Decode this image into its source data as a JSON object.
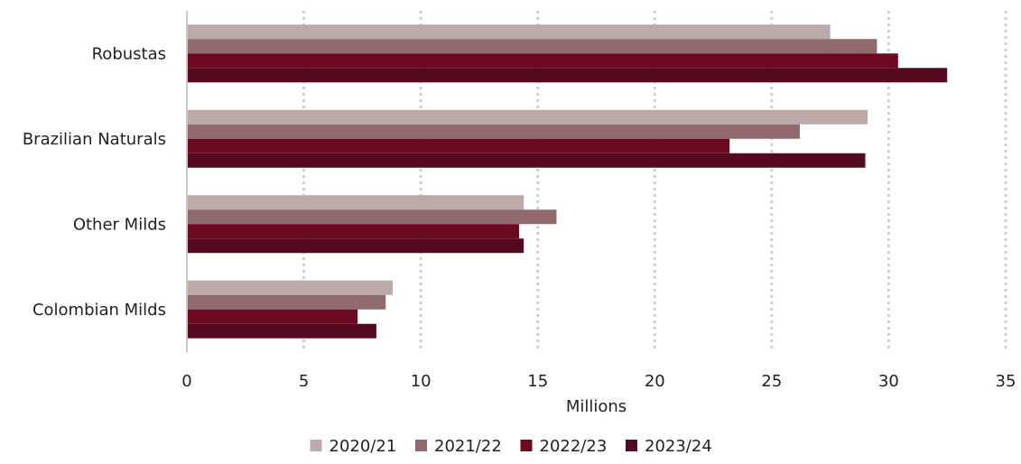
{
  "chart_data": {
    "type": "bar",
    "orientation": "horizontal",
    "categories": [
      "Robustas",
      "Brazilian Naturals",
      "Other Milds",
      "Colombian Milds"
    ],
    "series": [
      {
        "name": "2020/21",
        "color": "#bcaaaa",
        "values": [
          27.5,
          29.1,
          14.4,
          8.8
        ]
      },
      {
        "name": "2021/22",
        "color": "#906a6d",
        "values": [
          29.5,
          26.2,
          15.8,
          8.5
        ]
      },
      {
        "name": "2022/23",
        "color": "#6c0a22",
        "values": [
          30.4,
          23.2,
          14.2,
          7.3
        ]
      },
      {
        "name": "2023/24",
        "color": "#560a1f",
        "values": [
          32.5,
          29.0,
          14.4,
          8.1
        ]
      }
    ],
    "xlim": [
      0,
      35
    ],
    "xticks": [
      0,
      5,
      10,
      15,
      20,
      25,
      30,
      35
    ],
    "xlabel": "Millions",
    "ylabel": "",
    "grid": "vertical dotted",
    "legend_position": "bottom"
  }
}
